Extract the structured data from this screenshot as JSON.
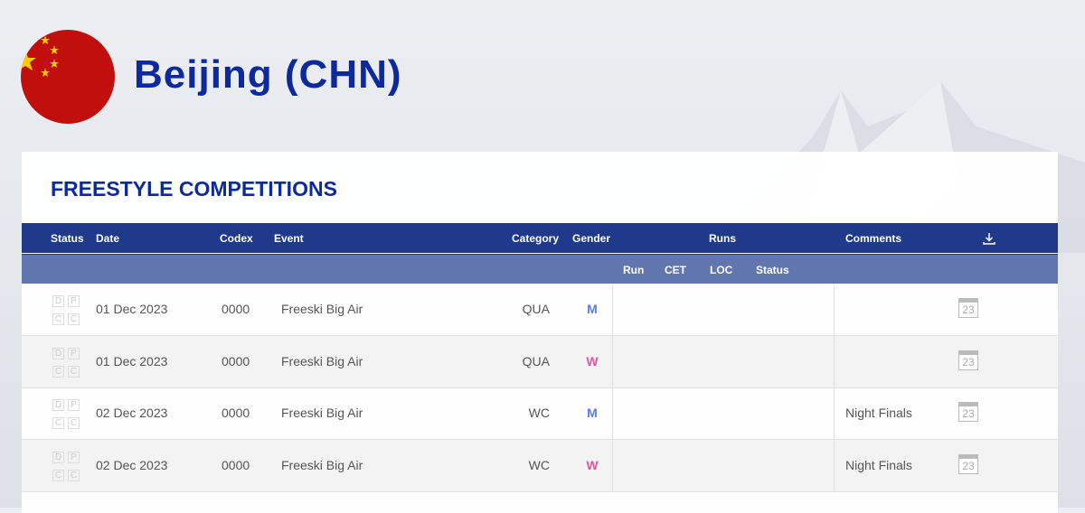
{
  "page": {
    "title": "Beijing (CHN)",
    "flag": "china-flag"
  },
  "section": {
    "heading": "FREESTYLE COMPETITIONS"
  },
  "table": {
    "headers": {
      "status": "Status",
      "date": "Date",
      "codex": "Codex",
      "event": "Event",
      "category": "Category",
      "gender": "Gender",
      "runs": "Runs",
      "comments": "Comments",
      "download_icon": "download-icon"
    },
    "subheaders": {
      "run": "Run",
      "cet": "CET",
      "loc": "LOC",
      "status": "Status"
    },
    "status_boxes": [
      "D",
      "P",
      "C",
      "C"
    ],
    "gender_colors": {
      "M": "#5b7ee5",
      "W": "#e0559b"
    },
    "rows": [
      {
        "date": "01 Dec 2023",
        "codex": "0000",
        "event": "Freeski Big Air",
        "category": "QUA",
        "gender": "M",
        "comments": "",
        "calendar": "23"
      },
      {
        "date": "01 Dec 2023",
        "codex": "0000",
        "event": "Freeski Big Air",
        "category": "QUA",
        "gender": "W",
        "comments": "",
        "calendar": "23"
      },
      {
        "date": "02 Dec 2023",
        "codex": "0000",
        "event": "Freeski Big Air",
        "category": "WC",
        "gender": "M",
        "comments": "Night Finals",
        "calendar": "23"
      },
      {
        "date": "02 Dec 2023",
        "codex": "0000",
        "event": "Freeski Big Air",
        "category": "WC",
        "gender": "W",
        "comments": "Night Finals",
        "calendar": "23"
      }
    ]
  }
}
